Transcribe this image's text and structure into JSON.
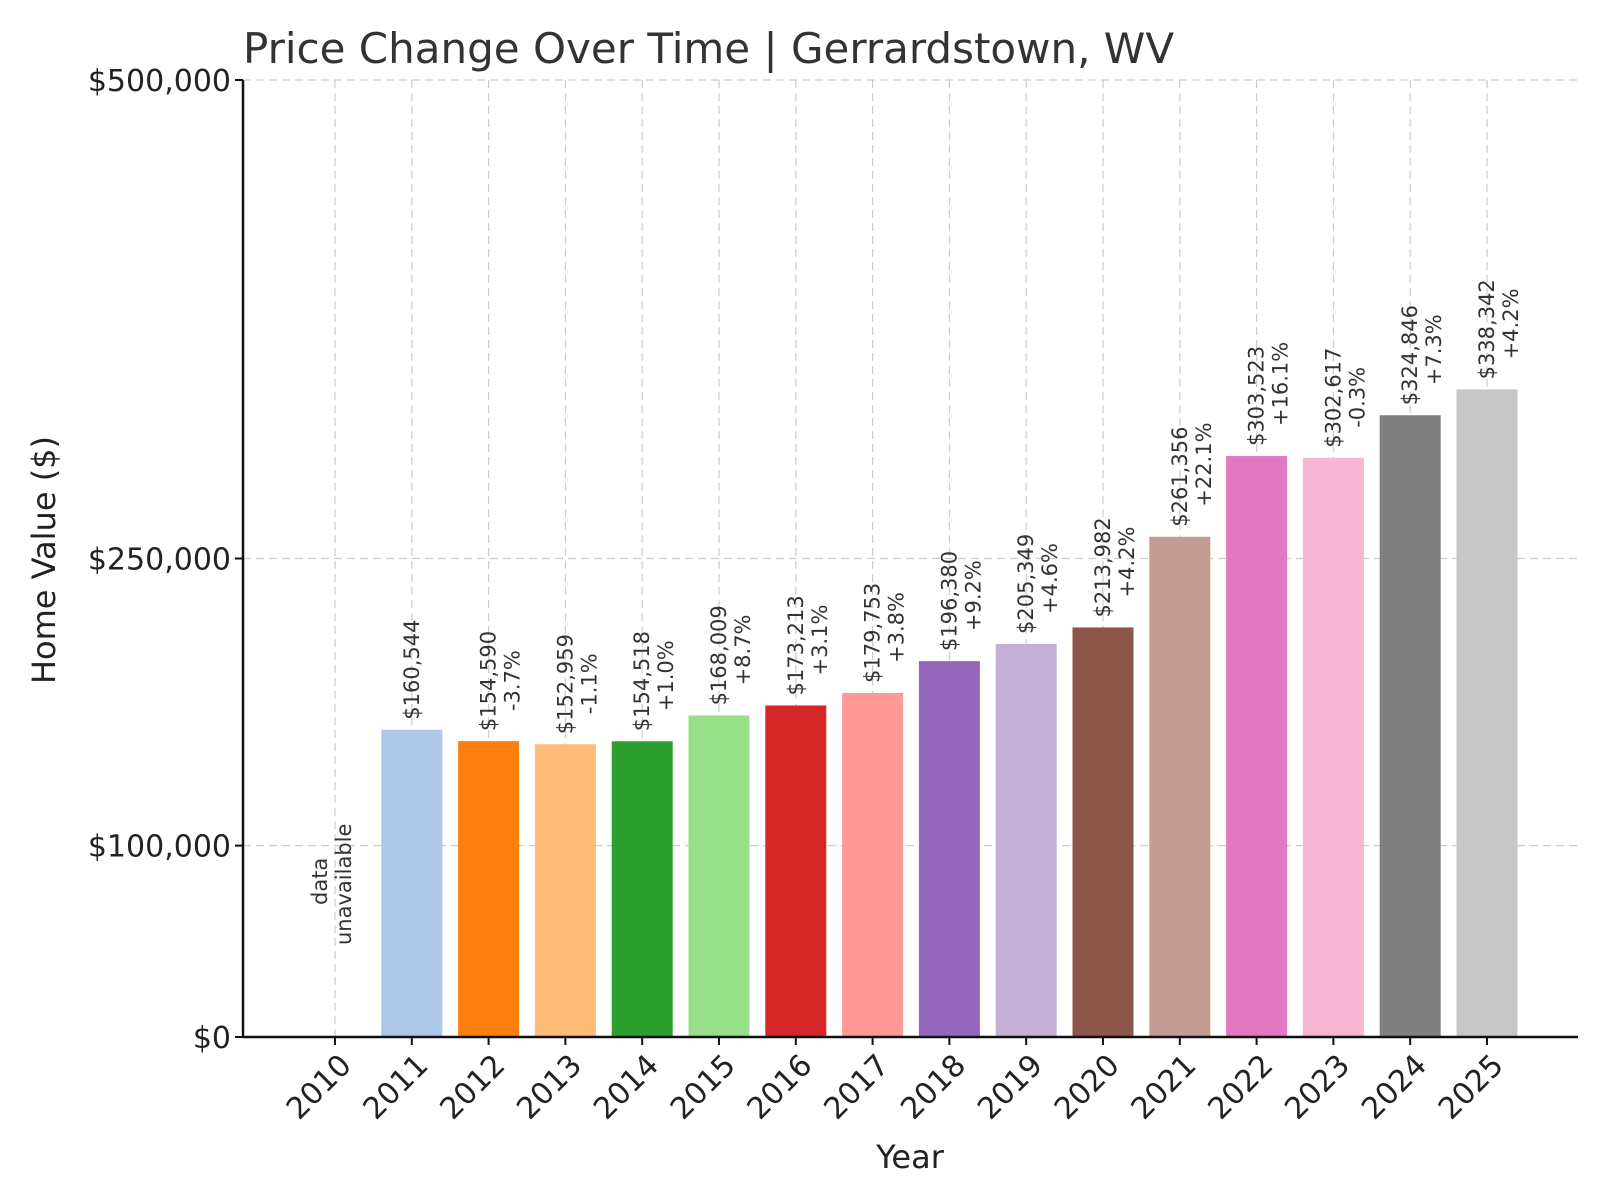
{
  "chart_data": {
    "type": "bar",
    "title": "Price Change Over Time | Gerrardstown, WV",
    "xlabel": "Year",
    "ylabel": "Home Value ($)",
    "ylim": [
      0,
      500000
    ],
    "yticks": [
      0,
      100000,
      250000,
      500000
    ],
    "ytick_labels": [
      "$0",
      "$100,000",
      "$250,000",
      "$500,000"
    ],
    "grid": true,
    "categories": [
      "2010",
      "2011",
      "2012",
      "2013",
      "2014",
      "2015",
      "2016",
      "2017",
      "2018",
      "2019",
      "2020",
      "2021",
      "2022",
      "2023",
      "2024",
      "2025"
    ],
    "values": [
      null,
      160544,
      154590,
      152959,
      154518,
      168009,
      173213,
      179753,
      196380,
      205349,
      213982,
      261356,
      303523,
      302617,
      324846,
      338342
    ],
    "value_labels": [
      "",
      "$160,544",
      "$154,590",
      "$152,959",
      "$154,518",
      "$168,009",
      "$173,213",
      "$179,753",
      "$196,380",
      "$205,349",
      "$213,982",
      "$261,356",
      "$303,523",
      "$302,617",
      "$324,846",
      "$338,342"
    ],
    "change_labels": [
      "",
      "",
      "-3.7%",
      "-1.1%",
      "+1.0%",
      "+8.7%",
      "+3.1%",
      "+3.8%",
      "+9.2%",
      "+4.6%",
      "+4.2%",
      "+22.1%",
      "+16.1%",
      "-0.3%",
      "+7.3%",
      "+4.2%"
    ],
    "missing_label": [
      "data",
      "unavailable"
    ],
    "colors": [
      "#1f77b4",
      "#aec7e8",
      "#ff7f0e",
      "#ffbb78",
      "#2ca02c",
      "#98df8a",
      "#d62728",
      "#ff9896",
      "#9467bd",
      "#c5b0d5",
      "#8c564b",
      "#c49c94",
      "#e377c2",
      "#f7b6d2",
      "#7f7f7f",
      "#c7c7c7"
    ]
  }
}
